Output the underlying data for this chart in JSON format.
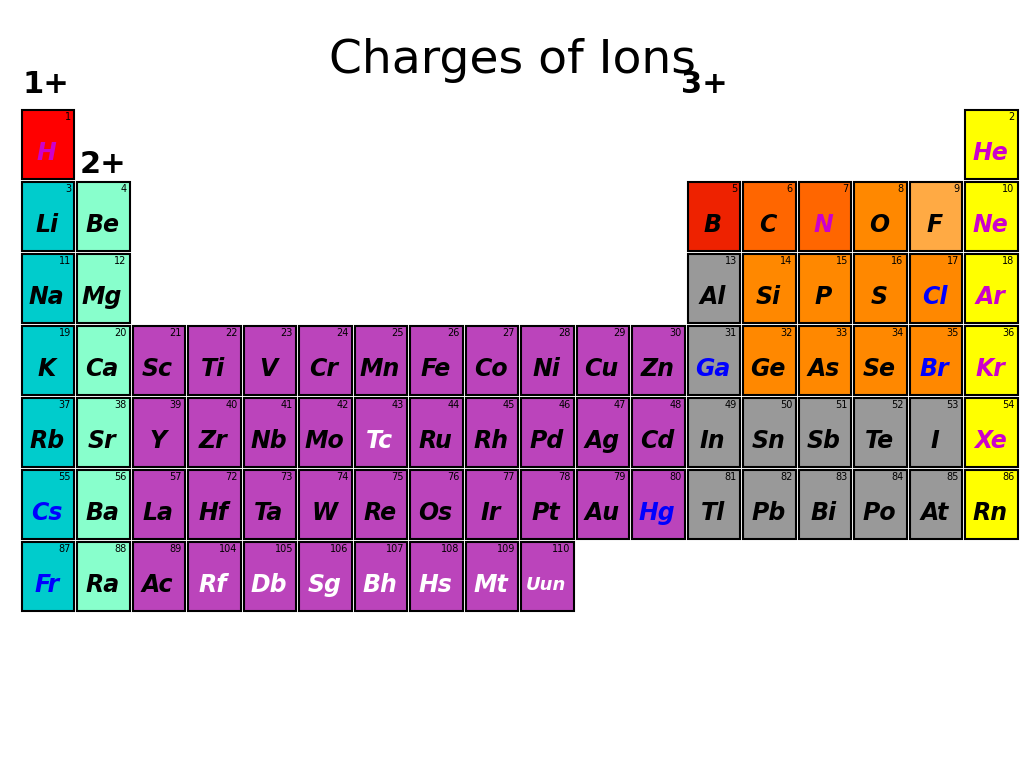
{
  "title": "Charges of Ions",
  "title_fontsize": 34,
  "bg_color": "#ffffff",
  "elements": [
    {
      "symbol": "H",
      "number": 1,
      "row": 1,
      "col": 1,
      "color": "#ff0000",
      "text_color": "#cc00cc"
    },
    {
      "symbol": "He",
      "number": 2,
      "row": 1,
      "col": 18,
      "color": "#ffff00",
      "text_color": "#cc00cc"
    },
    {
      "symbol": "Li",
      "number": 3,
      "row": 2,
      "col": 1,
      "color": "#00cccc",
      "text_color": "#000000"
    },
    {
      "symbol": "Be",
      "number": 4,
      "row": 2,
      "col": 2,
      "color": "#88ffcc",
      "text_color": "#000000"
    },
    {
      "symbol": "B",
      "number": 5,
      "row": 2,
      "col": 13,
      "color": "#ee2200",
      "text_color": "#000000"
    },
    {
      "symbol": "C",
      "number": 6,
      "row": 2,
      "col": 14,
      "color": "#ff6600",
      "text_color": "#000000"
    },
    {
      "symbol": "N",
      "number": 7,
      "row": 2,
      "col": 15,
      "color": "#ff6600",
      "text_color": "#cc00cc"
    },
    {
      "symbol": "O",
      "number": 8,
      "row": 2,
      "col": 16,
      "color": "#ff8800",
      "text_color": "#000000"
    },
    {
      "symbol": "F",
      "number": 9,
      "row": 2,
      "col": 17,
      "color": "#ffaa44",
      "text_color": "#000000"
    },
    {
      "symbol": "Ne",
      "number": 10,
      "row": 2,
      "col": 18,
      "color": "#ffff00",
      "text_color": "#cc00cc"
    },
    {
      "symbol": "Na",
      "number": 11,
      "row": 3,
      "col": 1,
      "color": "#00cccc",
      "text_color": "#000000"
    },
    {
      "symbol": "Mg",
      "number": 12,
      "row": 3,
      "col": 2,
      "color": "#88ffcc",
      "text_color": "#000000"
    },
    {
      "symbol": "Al",
      "number": 13,
      "row": 3,
      "col": 13,
      "color": "#999999",
      "text_color": "#000000"
    },
    {
      "symbol": "Si",
      "number": 14,
      "row": 3,
      "col": 14,
      "color": "#ff8800",
      "text_color": "#000000"
    },
    {
      "symbol": "P",
      "number": 15,
      "row": 3,
      "col": 15,
      "color": "#ff8800",
      "text_color": "#000000"
    },
    {
      "symbol": "S",
      "number": 16,
      "row": 3,
      "col": 16,
      "color": "#ff8800",
      "text_color": "#000000"
    },
    {
      "symbol": "Cl",
      "number": 17,
      "row": 3,
      "col": 17,
      "color": "#ff8800",
      "text_color": "#0000ff"
    },
    {
      "symbol": "Ar",
      "number": 18,
      "row": 3,
      "col": 18,
      "color": "#ffff00",
      "text_color": "#cc00cc"
    },
    {
      "symbol": "K",
      "number": 19,
      "row": 4,
      "col": 1,
      "color": "#00cccc",
      "text_color": "#000000"
    },
    {
      "symbol": "Ca",
      "number": 20,
      "row": 4,
      "col": 2,
      "color": "#88ffcc",
      "text_color": "#000000"
    },
    {
      "symbol": "Sc",
      "number": 21,
      "row": 4,
      "col": 3,
      "color": "#bb44bb",
      "text_color": "#000000"
    },
    {
      "symbol": "Ti",
      "number": 22,
      "row": 4,
      "col": 4,
      "color": "#bb44bb",
      "text_color": "#000000"
    },
    {
      "symbol": "V",
      "number": 23,
      "row": 4,
      "col": 5,
      "color": "#bb44bb",
      "text_color": "#000000"
    },
    {
      "symbol": "Cr",
      "number": 24,
      "row": 4,
      "col": 6,
      "color": "#bb44bb",
      "text_color": "#000000"
    },
    {
      "symbol": "Mn",
      "number": 25,
      "row": 4,
      "col": 7,
      "color": "#bb44bb",
      "text_color": "#000000"
    },
    {
      "symbol": "Fe",
      "number": 26,
      "row": 4,
      "col": 8,
      "color": "#bb44bb",
      "text_color": "#000000"
    },
    {
      "symbol": "Co",
      "number": 27,
      "row": 4,
      "col": 9,
      "color": "#bb44bb",
      "text_color": "#000000"
    },
    {
      "symbol": "Ni",
      "number": 28,
      "row": 4,
      "col": 10,
      "color": "#bb44bb",
      "text_color": "#000000"
    },
    {
      "symbol": "Cu",
      "number": 29,
      "row": 4,
      "col": 11,
      "color": "#bb44bb",
      "text_color": "#000000"
    },
    {
      "symbol": "Zn",
      "number": 30,
      "row": 4,
      "col": 12,
      "color": "#bb44bb",
      "text_color": "#000000"
    },
    {
      "symbol": "Ga",
      "number": 31,
      "row": 4,
      "col": 13,
      "color": "#999999",
      "text_color": "#0000ff"
    },
    {
      "symbol": "Ge",
      "number": 32,
      "row": 4,
      "col": 14,
      "color": "#ff8800",
      "text_color": "#000000"
    },
    {
      "symbol": "As",
      "number": 33,
      "row": 4,
      "col": 15,
      "color": "#ff8800",
      "text_color": "#000000"
    },
    {
      "symbol": "Se",
      "number": 34,
      "row": 4,
      "col": 16,
      "color": "#ff8800",
      "text_color": "#000000"
    },
    {
      "symbol": "Br",
      "number": 35,
      "row": 4,
      "col": 17,
      "color": "#ff8800",
      "text_color": "#0000ff"
    },
    {
      "symbol": "Kr",
      "number": 36,
      "row": 4,
      "col": 18,
      "color": "#ffff00",
      "text_color": "#cc00cc"
    },
    {
      "symbol": "Rb",
      "number": 37,
      "row": 5,
      "col": 1,
      "color": "#00cccc",
      "text_color": "#000000"
    },
    {
      "symbol": "Sr",
      "number": 38,
      "row": 5,
      "col": 2,
      "color": "#88ffcc",
      "text_color": "#000000"
    },
    {
      "symbol": "Y",
      "number": 39,
      "row": 5,
      "col": 3,
      "color": "#bb44bb",
      "text_color": "#000000"
    },
    {
      "symbol": "Zr",
      "number": 40,
      "row": 5,
      "col": 4,
      "color": "#bb44bb",
      "text_color": "#000000"
    },
    {
      "symbol": "Nb",
      "number": 41,
      "row": 5,
      "col": 5,
      "color": "#bb44bb",
      "text_color": "#000000"
    },
    {
      "symbol": "Mo",
      "number": 42,
      "row": 5,
      "col": 6,
      "color": "#bb44bb",
      "text_color": "#000000"
    },
    {
      "symbol": "Tc",
      "number": 43,
      "row": 5,
      "col": 7,
      "color": "#bb44bb",
      "text_color": "#ffffff"
    },
    {
      "symbol": "Ru",
      "number": 44,
      "row": 5,
      "col": 8,
      "color": "#bb44bb",
      "text_color": "#000000"
    },
    {
      "symbol": "Rh",
      "number": 45,
      "row": 5,
      "col": 9,
      "color": "#bb44bb",
      "text_color": "#000000"
    },
    {
      "symbol": "Pd",
      "number": 46,
      "row": 5,
      "col": 10,
      "color": "#bb44bb",
      "text_color": "#000000"
    },
    {
      "symbol": "Ag",
      "number": 47,
      "row": 5,
      "col": 11,
      "color": "#bb44bb",
      "text_color": "#000000"
    },
    {
      "symbol": "Cd",
      "number": 48,
      "row": 5,
      "col": 12,
      "color": "#bb44bb",
      "text_color": "#000000"
    },
    {
      "symbol": "In",
      "number": 49,
      "row": 5,
      "col": 13,
      "color": "#999999",
      "text_color": "#000000"
    },
    {
      "symbol": "Sn",
      "number": 50,
      "row": 5,
      "col": 14,
      "color": "#999999",
      "text_color": "#000000"
    },
    {
      "symbol": "Sb",
      "number": 51,
      "row": 5,
      "col": 15,
      "color": "#999999",
      "text_color": "#000000"
    },
    {
      "symbol": "Te",
      "number": 52,
      "row": 5,
      "col": 16,
      "color": "#999999",
      "text_color": "#000000"
    },
    {
      "symbol": "I",
      "number": 53,
      "row": 5,
      "col": 17,
      "color": "#999999",
      "text_color": "#000000"
    },
    {
      "symbol": "Xe",
      "number": 54,
      "row": 5,
      "col": 18,
      "color": "#ffff00",
      "text_color": "#cc00cc"
    },
    {
      "symbol": "Cs",
      "number": 55,
      "row": 6,
      "col": 1,
      "color": "#00cccc",
      "text_color": "#0000ff"
    },
    {
      "symbol": "Ba",
      "number": 56,
      "row": 6,
      "col": 2,
      "color": "#88ffcc",
      "text_color": "#000000"
    },
    {
      "symbol": "La",
      "number": 57,
      "row": 6,
      "col": 3,
      "color": "#bb44bb",
      "text_color": "#000000"
    },
    {
      "symbol": "Hf",
      "number": 72,
      "row": 6,
      "col": 4,
      "color": "#bb44bb",
      "text_color": "#000000"
    },
    {
      "symbol": "Ta",
      "number": 73,
      "row": 6,
      "col": 5,
      "color": "#bb44bb",
      "text_color": "#000000"
    },
    {
      "symbol": "W",
      "number": 74,
      "row": 6,
      "col": 6,
      "color": "#bb44bb",
      "text_color": "#000000"
    },
    {
      "symbol": "Re",
      "number": 75,
      "row": 6,
      "col": 7,
      "color": "#bb44bb",
      "text_color": "#000000"
    },
    {
      "symbol": "Os",
      "number": 76,
      "row": 6,
      "col": 8,
      "color": "#bb44bb",
      "text_color": "#000000"
    },
    {
      "symbol": "Ir",
      "number": 77,
      "row": 6,
      "col": 9,
      "color": "#bb44bb",
      "text_color": "#000000"
    },
    {
      "symbol": "Pt",
      "number": 78,
      "row": 6,
      "col": 10,
      "color": "#bb44bb",
      "text_color": "#000000"
    },
    {
      "symbol": "Au",
      "number": 79,
      "row": 6,
      "col": 11,
      "color": "#bb44bb",
      "text_color": "#000000"
    },
    {
      "symbol": "Hg",
      "number": 80,
      "row": 6,
      "col": 12,
      "color": "#bb44bb",
      "text_color": "#0000ff"
    },
    {
      "symbol": "Tl",
      "number": 81,
      "row": 6,
      "col": 13,
      "color": "#999999",
      "text_color": "#000000"
    },
    {
      "symbol": "Pb",
      "number": 82,
      "row": 6,
      "col": 14,
      "color": "#999999",
      "text_color": "#000000"
    },
    {
      "symbol": "Bi",
      "number": 83,
      "row": 6,
      "col": 15,
      "color": "#999999",
      "text_color": "#000000"
    },
    {
      "symbol": "Po",
      "number": 84,
      "row": 6,
      "col": 16,
      "color": "#999999",
      "text_color": "#000000"
    },
    {
      "symbol": "At",
      "number": 85,
      "row": 6,
      "col": 17,
      "color": "#999999",
      "text_color": "#000000"
    },
    {
      "symbol": "Rn",
      "number": 86,
      "row": 6,
      "col": 18,
      "color": "#ffff00",
      "text_color": "#000000"
    },
    {
      "symbol": "Fr",
      "number": 87,
      "row": 7,
      "col": 1,
      "color": "#00cccc",
      "text_color": "#0000ff"
    },
    {
      "symbol": "Ra",
      "number": 88,
      "row": 7,
      "col": 2,
      "color": "#88ffcc",
      "text_color": "#000000"
    },
    {
      "symbol": "Ac",
      "number": 89,
      "row": 7,
      "col": 3,
      "color": "#bb44bb",
      "text_color": "#000000"
    },
    {
      "symbol": "Rf",
      "number": 104,
      "row": 7,
      "col": 4,
      "color": "#bb44bb",
      "text_color": "#ffffff"
    },
    {
      "symbol": "Db",
      "number": 105,
      "row": 7,
      "col": 5,
      "color": "#bb44bb",
      "text_color": "#ffffff"
    },
    {
      "symbol": "Sg",
      "number": 106,
      "row": 7,
      "col": 6,
      "color": "#bb44bb",
      "text_color": "#ffffff"
    },
    {
      "symbol": "Bh",
      "number": 107,
      "row": 7,
      "col": 7,
      "color": "#bb44bb",
      "text_color": "#ffffff"
    },
    {
      "symbol": "Hs",
      "number": 108,
      "row": 7,
      "col": 8,
      "color": "#bb44bb",
      "text_color": "#ffffff"
    },
    {
      "symbol": "Mt",
      "number": 109,
      "row": 7,
      "col": 9,
      "color": "#bb44bb",
      "text_color": "#ffffff"
    },
    {
      "symbol": "Uun",
      "number": 110,
      "row": 7,
      "col": 10,
      "color": "#bb44bb",
      "text_color": "#ffffff"
    }
  ]
}
